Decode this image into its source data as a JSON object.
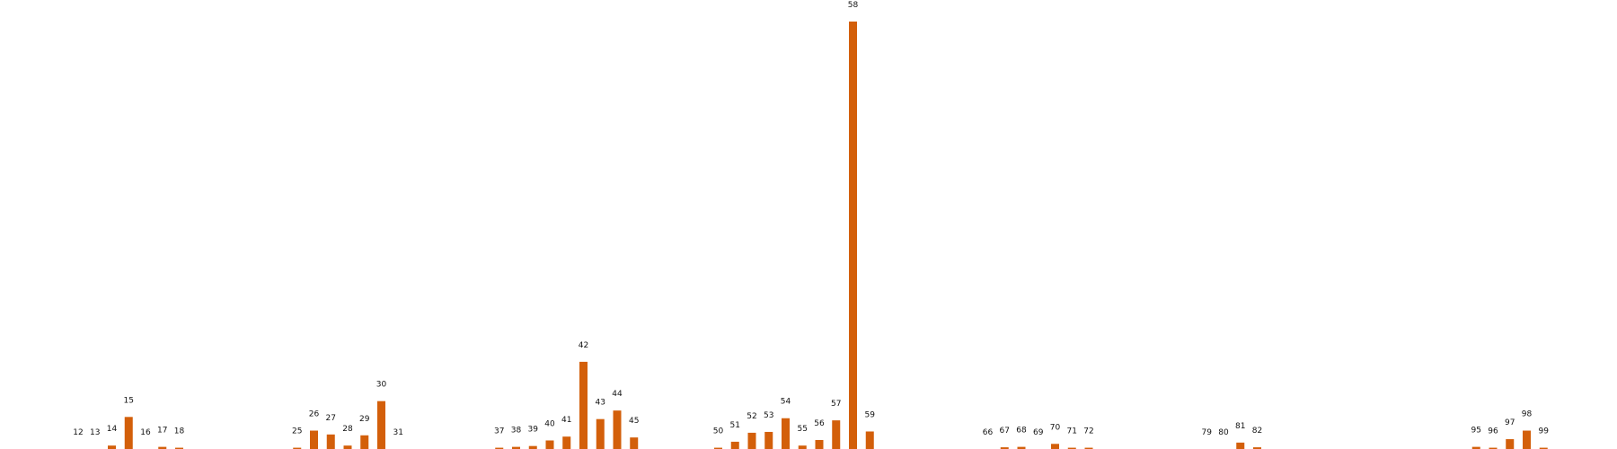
{
  "chart_data": {
    "type": "bar",
    "title": "",
    "xlabel": "",
    "ylabel": "",
    "grid": false,
    "legend": "none",
    "color": "#d35f0a",
    "ylim": [
      0,
      100
    ],
    "categories": [
      "12",
      "13",
      "14",
      "15",
      "16",
      "17",
      "18",
      "25",
      "26",
      "27",
      "28",
      "29",
      "30",
      "31",
      "37",
      "38",
      "39",
      "40",
      "41",
      "42",
      "43",
      "44",
      "45",
      "50",
      "51",
      "52",
      "53",
      "54",
      "55",
      "56",
      "57",
      "58",
      "59",
      "66",
      "67",
      "68",
      "69",
      "70",
      "71",
      "72",
      "79",
      "80",
      "81",
      "82",
      "95",
      "96",
      "97",
      "98",
      "99"
    ],
    "x": [
      12,
      13,
      14,
      15,
      16,
      17,
      18,
      25,
      26,
      27,
      28,
      29,
      30,
      31,
      37,
      38,
      39,
      40,
      41,
      42,
      43,
      44,
      45,
      50,
      51,
      52,
      53,
      54,
      55,
      56,
      57,
      58,
      59,
      66,
      67,
      68,
      69,
      70,
      71,
      72,
      79,
      80,
      81,
      82,
      95,
      96,
      97,
      98,
      99
    ],
    "values": [
      0,
      0,
      0.8,
      7.5,
      0,
      0.5,
      0.3,
      0.3,
      4.3,
      3.4,
      0.8,
      3.2,
      11.2,
      0,
      0.3,
      0.5,
      0.7,
      2.0,
      2.9,
      20.4,
      7.0,
      9.0,
      2.7,
      0.3,
      1.7,
      3.8,
      4.0,
      7.2,
      0.8,
      2.1,
      6.7,
      100,
      4.1,
      0,
      0.4,
      0.5,
      0,
      1.2,
      0.3,
      0.3,
      0,
      0,
      1.5,
      0.4,
      0.5,
      0.3,
      2.3,
      4.3,
      0.3
    ]
  }
}
